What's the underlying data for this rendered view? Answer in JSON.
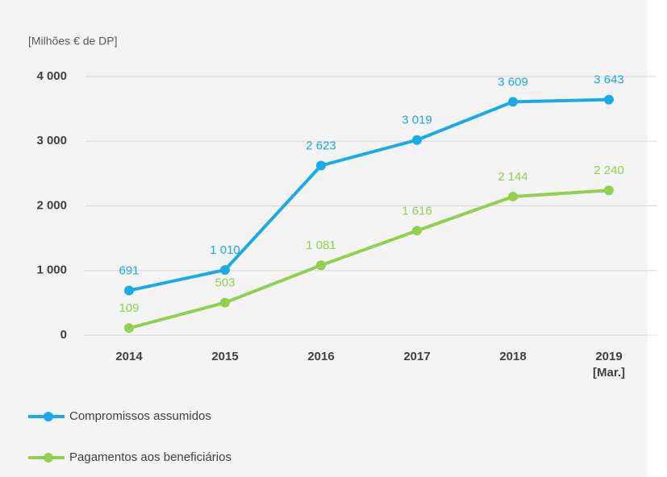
{
  "chart_data": {
    "type": "line",
    "ylabel": "[Milhões € de DP]",
    "categories": [
      "2014",
      "2015",
      "2016",
      "2017",
      "2018",
      "2019\n[Mar.]"
    ],
    "series": [
      {
        "name": "Compromissos assumidos",
        "color": "#1aabe6",
        "values": [
          691,
          1010,
          2623,
          3019,
          3609,
          3643
        ],
        "value_labels": [
          "691",
          "1 010",
          "2 623",
          "3 019",
          "3 609",
          "3 643"
        ]
      },
      {
        "name": "Pagamentos aos beneficiários",
        "color": "#92d050",
        "values": [
          109,
          503,
          1081,
          1616,
          2144,
          2240
        ],
        "value_labels": [
          "109",
          "503",
          "1 081",
          "1 616",
          "2 144",
          "2 240"
        ]
      }
    ],
    "ylim": [
      0,
      4000
    ],
    "yticks": [
      0,
      {
        "value": 1000,
        "label": "1 000"
      },
      {
        "value": 2000,
        "label": "2 000"
      },
      {
        "value": 3000,
        "label": "3 000"
      },
      {
        "value": 4000,
        "label": "4 000"
      }
    ],
    "grid": true
  }
}
